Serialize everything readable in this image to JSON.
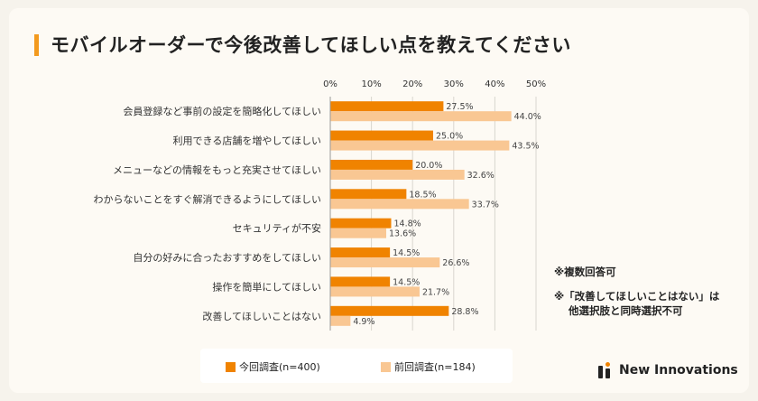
{
  "title": "モバイルオーダーで今後改善してほしい点を教えてください",
  "notes": {
    "multiple": "※複数回答可",
    "exclusive_line1": "※「改善してほしいことはない」は",
    "exclusive_line2": "他選択肢と同時選択不可"
  },
  "brand": {
    "name": "New Innovations"
  },
  "colors": {
    "current": "#f08300",
    "previous": "#f9c793",
    "grid": "#d9d6cf",
    "accent": "#f39a1e"
  },
  "chart_data": {
    "type": "bar",
    "orientation": "horizontal",
    "categories": [
      "会員登録など事前の設定を簡略化してほしい",
      "利用できる店舗を増やしてほしい",
      "メニューなどの情報をもっと充実させてほしい",
      "わからないことをすぐ解消できるようにしてほしい",
      "セキュリティが不安",
      "自分の好みに合ったおすすめをしてほしい",
      "操作を簡単にしてほしい",
      "改善してほしいことはない"
    ],
    "series": [
      {
        "name": "今回調査(n=400)",
        "color": "#f08300",
        "values": [
          27.5,
          25.0,
          20.0,
          18.5,
          14.8,
          14.5,
          14.5,
          28.8
        ]
      },
      {
        "name": "前回調査(n=184)",
        "color": "#f9c793",
        "values": [
          44.0,
          43.5,
          32.6,
          33.7,
          13.6,
          26.6,
          21.7,
          4.9
        ]
      }
    ],
    "xlim": [
      0,
      50
    ],
    "xticks": [
      "0%",
      "10%",
      "20%",
      "30%",
      "40%",
      "50%"
    ],
    "value_suffix": "%",
    "grid": true,
    "legend_position": "bottom"
  }
}
